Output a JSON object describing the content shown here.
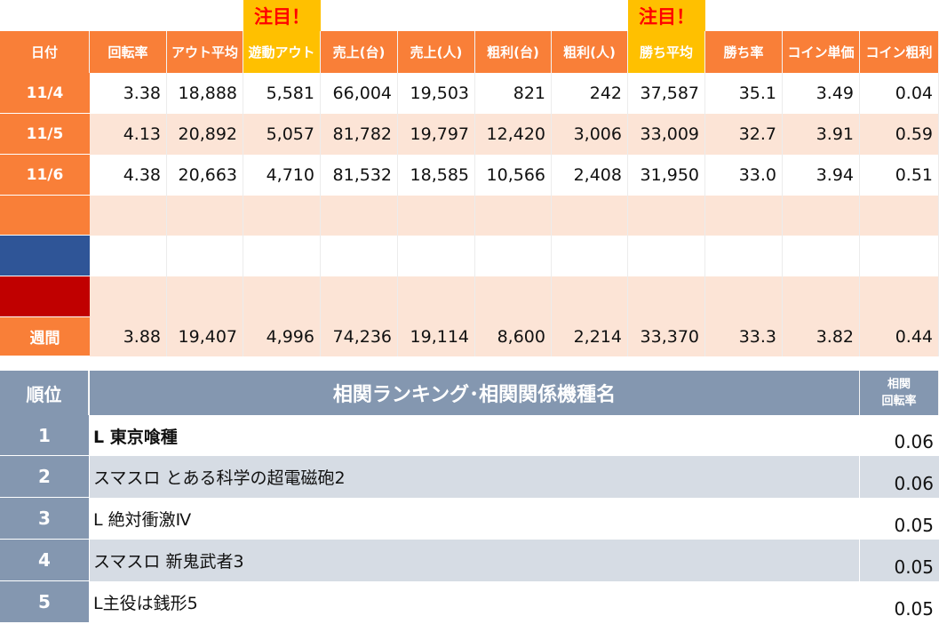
{
  "highlight_tag": "注目！",
  "colors": {
    "header_orange": "#f97f38",
    "highlight_yellow": "#ffc000",
    "highlight_text": "#ff0000",
    "row_peach": "#fce4d6",
    "row_white": "#ffffff",
    "blue_block": "#2f5597",
    "red_block": "#c00000",
    "rank_header": "#8497b0",
    "rank_alt_row": "#d6dce4"
  },
  "stats_table": {
    "headers": [
      "日付",
      "回転率",
      "アウト平均",
      "遊動アウト",
      "売上(台)",
      "売上(人)",
      "粗利(台)",
      "粗利(人)",
      "勝ち平均",
      "勝ち率",
      "コイン単価",
      "コイン粗利"
    ],
    "rows": [
      {
        "date": "11/4",
        "values": [
          "3.38",
          "18,888",
          "5,581",
          "66,004",
          "19,503",
          "821",
          "242",
          "37,587",
          "35.1",
          "3.49",
          "0.04"
        ]
      },
      {
        "date": "11/5",
        "values": [
          "4.13",
          "20,892",
          "5,057",
          "81,782",
          "19,797",
          "12,420",
          "3,006",
          "33,009",
          "32.7",
          "3.91",
          "0.59"
        ]
      },
      {
        "date": "11/6",
        "values": [
          "4.38",
          "20,663",
          "4,710",
          "81,532",
          "18,585",
          "10,566",
          "2,408",
          "31,950",
          "33.0",
          "3.94",
          "0.51"
        ]
      },
      {
        "date": "",
        "values": [
          "",
          "",
          "",
          "",
          "",
          "",
          "",
          "",
          "",
          "",
          ""
        ]
      },
      {
        "date": "",
        "values": [
          "",
          "",
          "",
          "",
          "",
          "",
          "",
          "",
          "",
          "",
          ""
        ]
      },
      {
        "date": "",
        "values": [
          "",
          "",
          "",
          "",
          "",
          "",
          "",
          "",
          "",
          "",
          ""
        ]
      }
    ],
    "week": {
      "label": "週間",
      "values": [
        "3.88",
        "19,407",
        "4,996",
        "74,236",
        "19,114",
        "8,600",
        "2,214",
        "33,370",
        "33.3",
        "3.82",
        "0.44"
      ]
    }
  },
  "ranking_table": {
    "header_rank": "順位",
    "header_title": "相関ランキング･相関関係機種名",
    "header_value_line1": "相関",
    "header_value_line2": "回転率",
    "rows": [
      {
        "rank": "1",
        "name": "L 東京喰種",
        "value": "0.06"
      },
      {
        "rank": "2",
        "name": "スマスロ とある科学の超電磁砲2",
        "value": "0.06"
      },
      {
        "rank": "3",
        "name": "L 絶対衝激Ⅳ",
        "value": "0.05"
      },
      {
        "rank": "4",
        "name": "スマスロ 新鬼武者3",
        "value": "0.05"
      },
      {
        "rank": "5",
        "name": "L主役は銭形5",
        "value": "0.05"
      }
    ]
  }
}
